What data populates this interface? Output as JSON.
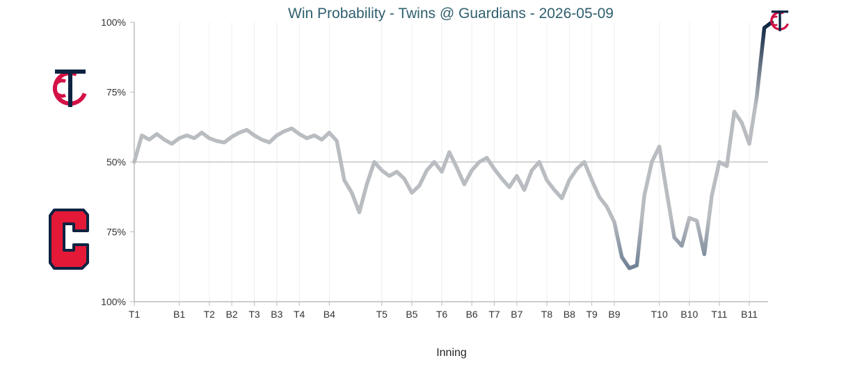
{
  "chart_data": {
    "type": "line",
    "title": "Win Probability - Twins @ Guardians - 2026-05-09",
    "xlabel": "Inning",
    "ylabel": "",
    "y_ticks": [
      "100%",
      "75%",
      "50%",
      "75%",
      "100%"
    ],
    "y_tick_values": [
      100,
      50,
      0,
      -50,
      -100
    ],
    "ylim": [
      -100,
      100
    ],
    "x_ticks": [
      "T1",
      "B1",
      "T2",
      "B2",
      "T3",
      "B3",
      "T4",
      "B4",
      "T5",
      "B5",
      "T6",
      "B6",
      "T7",
      "B7",
      "T8",
      "B8",
      "T9",
      "B9",
      "T10",
      "B10",
      "T11",
      "B11"
    ],
    "x_tick_positions": [
      0,
      6,
      10,
      13,
      16,
      19,
      22,
      26,
      33,
      37,
      41,
      45,
      48,
      51,
      55,
      58,
      61,
      64,
      70,
      74,
      78,
      82
    ],
    "xlim": [
      0,
      84.5
    ],
    "reference_line": 0,
    "series": [
      {
        "values": [
          0,
          19,
          16,
          20,
          16,
          13,
          17,
          19,
          17,
          21,
          17,
          15,
          14,
          18,
          21,
          23,
          19,
          16,
          14,
          19,
          22,
          24,
          20,
          17,
          19,
          16,
          21,
          15,
          -13,
          -22,
          -36,
          -16,
          0,
          -6,
          -10,
          -7,
          -12,
          -22,
          -17,
          -6,
          0,
          -7,
          7,
          -4,
          -16,
          -6,
          0,
          3,
          -5,
          -12,
          -18,
          -10,
          -20,
          -6,
          0,
          -13,
          -20,
          -26,
          -13,
          -5,
          0,
          -13,
          -25,
          -32,
          -43,
          -68,
          -76,
          -74,
          -24,
          0,
          11,
          -22,
          -54,
          -60,
          -40,
          -42,
          -66,
          -24,
          0,
          -3,
          36,
          28,
          13,
          47,
          96,
          100
        ]
      }
    ],
    "colors": {
      "neutral": "#b9bcc0",
      "twins_navy": "#0c2341",
      "guardians_navy": "#3d5a78",
      "twins_red": "#d31145",
      "guardians_red": "#e31937",
      "title": "#2f5f6e",
      "grid": "#eeeeee",
      "axis": "#bbbbbb"
    },
    "logos": {
      "top": "twins-tc-logo",
      "bottom": "guardians-c-logo",
      "end_marker": "twins-tc-logo"
    }
  }
}
